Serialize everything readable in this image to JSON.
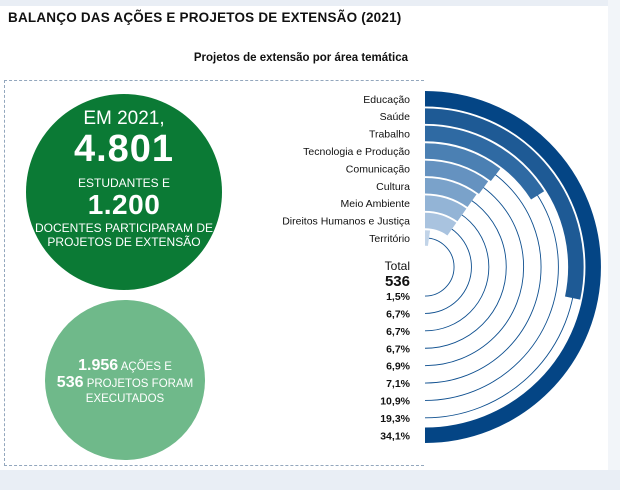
{
  "title": "BALANÇO DAS AÇÕES E PROJETOS DE EXTENSÃO (2021)",
  "circle_students": {
    "line1": "EM 2021,",
    "students_number": "4.801",
    "students_label": "ESTUDANTES E",
    "teachers_number": "1.200",
    "teachers_label_1": "DOCENTES PARTICIPARAM DE",
    "teachers_label_2": "PROJETOS DE EXTENSÃO"
  },
  "circle_actions": {
    "actions_number": "1.956",
    "actions_label": "AÇÕES E",
    "projects_number": "536",
    "projects_label": "PROJETOS FORAM",
    "executed_label": "EXECUTADOS"
  },
  "chart_data": {
    "type": "radial-bar",
    "title": "Projetos de extensão por área temática",
    "categories": [
      "Educação",
      "Saúde",
      "Trabalho",
      "Tecnologia e Produção",
      "Comunicação",
      "Cultura",
      "Meio Ambiente",
      "Direitos Humanos e Justiça",
      "Território"
    ],
    "values": [
      34.1,
      19.3,
      10.9,
      7.1,
      6.9,
      6.7,
      6.7,
      6.7,
      1.5
    ],
    "value_labels": [
      "1,5%",
      "6,7%",
      "6,7%",
      "6,7%",
      "6,9%",
      "7,1%",
      "10,9%",
      "19,3%",
      "34,1%"
    ],
    "total_label": "Total",
    "total_value": "536",
    "colors": [
      "#044585",
      "#1e5a95",
      "#2f6aa3",
      "#4b80b3",
      "#6592c0",
      "#7aa2ca",
      "#93b4d6",
      "#a9c3df",
      "#c2d4e8"
    ],
    "track_color": "#ffffff",
    "track_stroke": "#0e4f8f"
  }
}
